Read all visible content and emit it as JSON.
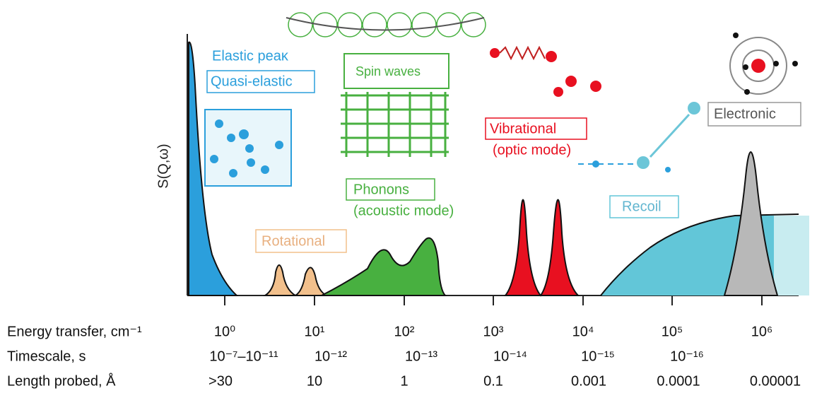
{
  "y_axis_label": "S(Q,ω)",
  "regions": {
    "elastic": "Elastic peaκ",
    "quasi_elastic": "Quasi-elastic",
    "spin_waves": "Spin waves",
    "phonons": "Phonons",
    "phonons_mode": "(acoustic mode)",
    "rotational": "Rotational",
    "vibrational": "Vibrational",
    "vibrational_mode": "(optic mode)",
    "recoil": "Recoil",
    "electronic": "Electronic"
  },
  "rows": [
    {
      "label": "Energy transfer, cm⁻¹",
      "values": [
        "10⁰",
        "10¹",
        "10²",
        "10³",
        "10⁴",
        "10⁵",
        "10⁶"
      ]
    },
    {
      "label": "Timescale, s",
      "values": [
        "10⁻⁷–10⁻¹¹",
        "10⁻¹²",
        "10⁻¹³",
        "10⁻¹⁴",
        "10⁻¹⁵",
        "10⁻¹⁶"
      ]
    },
    {
      "label": "Length probed, Å",
      "values": [
        ">30",
        "10",
        "1",
        "0.1",
        "0.001",
        "0.0001",
        "0.00001"
      ]
    }
  ]
}
